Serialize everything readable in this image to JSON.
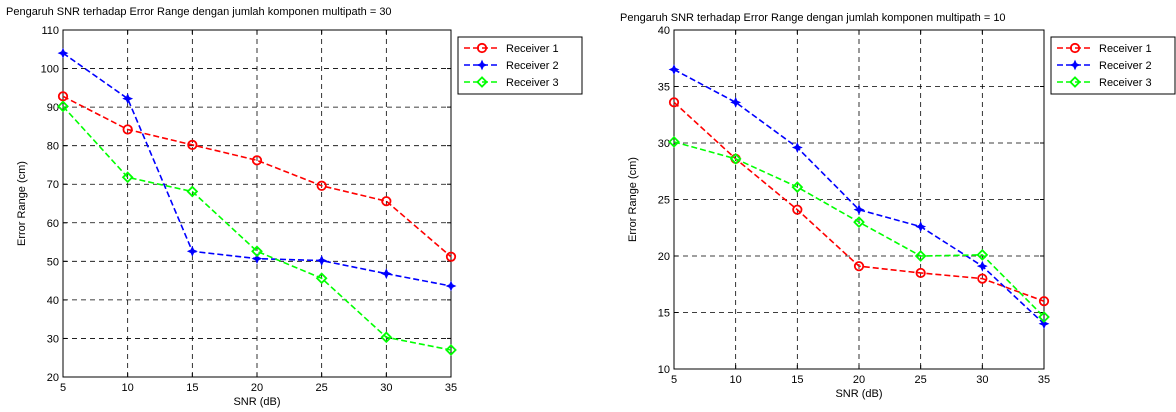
{
  "chart_data": [
    {
      "type": "line",
      "title": "Pengaruh SNR terhadap Error Range dengan jumlah komponen multipath = 30",
      "xlabel": "SNR (dB)",
      "ylabel": "Error Range (cm)",
      "xlim": [
        5,
        35
      ],
      "ylim": [
        20,
        110
      ],
      "xticks": [
        5,
        10,
        15,
        20,
        25,
        30,
        35
      ],
      "yticks": [
        20,
        30,
        40,
        50,
        60,
        70,
        80,
        90,
        100,
        110
      ],
      "grid": true,
      "legend_position": "top-right",
      "x": [
        5,
        10,
        15,
        20,
        25,
        30,
        35
      ],
      "series": [
        {
          "name": "Receiver 1",
          "color": "#ff0000",
          "marker": "circle",
          "values": [
            92.8,
            84.2,
            80.2,
            76.2,
            69.6,
            65.6,
            51.2
          ]
        },
        {
          "name": "Receiver 2",
          "color": "#0000ff",
          "marker": "star",
          "values": [
            104,
            92.2,
            52.6,
            50.7,
            50.2,
            46.8,
            43.6
          ]
        },
        {
          "name": "Receiver 3",
          "color": "#00ff00",
          "marker": "diamond",
          "values": [
            90.2,
            71.8,
            68.1,
            52.6,
            45.6,
            30.3,
            27.0
          ]
        }
      ]
    },
    {
      "type": "line",
      "title": "Pengaruh SNR terhadap Error Range dengan jumlah komponen multipath = 10",
      "xlabel": "SNR (dB)",
      "ylabel": "Error Range (cm)",
      "xlim": [
        5,
        35
      ],
      "ylim": [
        10,
        40
      ],
      "xticks": [
        5,
        10,
        15,
        20,
        25,
        30,
        35
      ],
      "yticks": [
        10,
        15,
        20,
        25,
        30,
        35,
        40
      ],
      "grid": true,
      "legend_position": "top-right",
      "x": [
        5,
        10,
        15,
        20,
        25,
        30,
        35
      ],
      "series": [
        {
          "name": "Receiver 1",
          "color": "#ff0000",
          "marker": "circle",
          "values": [
            33.6,
            28.6,
            24.1,
            19.1,
            18.5,
            18.0,
            16.0
          ]
        },
        {
          "name": "Receiver 2",
          "color": "#0000ff",
          "marker": "star",
          "values": [
            36.5,
            33.6,
            29.6,
            24.1,
            22.6,
            19.1,
            14.0
          ]
        },
        {
          "name": "Receiver 3",
          "color": "#00ff00",
          "marker": "diamond",
          "values": [
            30.1,
            28.6,
            26.1,
            23.0,
            20.0,
            20.1,
            14.6
          ]
        }
      ]
    }
  ]
}
